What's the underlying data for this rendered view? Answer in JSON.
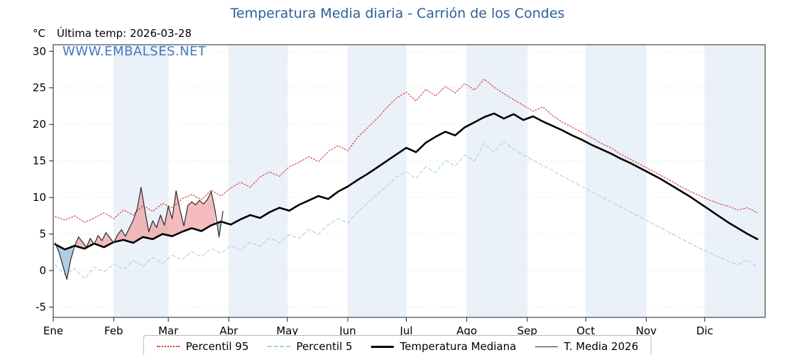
{
  "title": "Temperatura Media diaria - Carrión de los Condes",
  "unit_label": "°C",
  "last_temp_label": "Última temp: 2026-03-28",
  "watermark": "WWW.EMBALSES.NET",
  "colors": {
    "title": "#2d5f96",
    "watermark": "#3b6fc0",
    "band": "#eaf1f8",
    "grid": "#e3e7ee",
    "fill_above": "#f09f9f",
    "fill_below": "#8fb6da",
    "axis": "#222222"
  },
  "chart_data": {
    "type": "line",
    "title": "Temperatura Media diaria - Carrión de los Condes",
    "ylabel": "°C",
    "ylim": [
      -6.4,
      30.9
    ],
    "yticks": [
      -5,
      0,
      5,
      10,
      15,
      20,
      25,
      30
    ],
    "days_in_year": 365,
    "x_tick_labels": [
      "Ene",
      "Feb",
      "Mar",
      "Abr",
      "May",
      "Jun",
      "Jul",
      "Ago",
      "Sep",
      "Oct",
      "Nov",
      "Dic"
    ],
    "month_start_days": [
      0,
      31,
      59,
      90,
      120,
      151,
      181,
      212,
      243,
      273,
      304,
      334
    ],
    "grid": true,
    "legend_position": "bottom",
    "series": [
      {
        "name": "Percentil 95",
        "style": "dotted",
        "color": "#dd2a2a",
        "x_days": {
          "start": 1,
          "step": 5
        },
        "values": [
          7.4,
          6.9,
          7.5,
          6.6,
          7.2,
          7.9,
          7.1,
          8.3,
          7.6,
          8.9,
          8.1,
          9.2,
          8.6,
          9.8,
          10.4,
          9.7,
          11.0,
          10.2,
          11.3,
          12.1,
          11.4,
          12.8,
          13.5,
          12.9,
          14.2,
          14.8,
          15.6,
          14.9,
          16.3,
          17.1,
          16.4,
          18.2,
          19.5,
          20.8,
          22.3,
          23.6,
          24.4,
          23.2,
          24.8,
          23.9,
          25.2,
          24.3,
          25.6,
          24.7,
          26.2,
          25.1,
          24.2,
          23.4,
          22.6,
          21.8,
          22.4,
          21.2,
          20.3,
          19.6,
          18.9,
          18.2,
          17.4,
          16.8,
          15.9,
          15.2,
          14.5,
          13.8,
          13.1,
          12.4,
          11.6,
          10.9,
          10.3,
          9.7,
          9.2,
          8.8,
          8.3,
          8.6,
          7.9
        ]
      },
      {
        "name": "Percentil 5",
        "style": "dashed",
        "color": "#a3d3e8",
        "x_days": {
          "start": 1,
          "step": 5
        },
        "values": [
          0.8,
          -0.6,
          0.3,
          -1.1,
          0.5,
          -0.2,
          0.9,
          0.2,
          1.4,
          0.6,
          1.8,
          1.0,
          2.1,
          1.5,
          2.6,
          1.9,
          3.0,
          2.4,
          3.4,
          2.8,
          3.9,
          3.3,
          4.5,
          3.8,
          4.9,
          4.4,
          5.6,
          5.0,
          6.3,
          7.1,
          6.5,
          8.0,
          9.2,
          10.4,
          11.6,
          12.8,
          13.5,
          12.6,
          14.2,
          13.4,
          15.1,
          14.3,
          15.8,
          15.0,
          17.4,
          16.2,
          17.7,
          16.6,
          15.8,
          15.1,
          14.4,
          13.7,
          12.9,
          12.2,
          11.5,
          10.8,
          10.1,
          9.4,
          8.7,
          8.0,
          7.3,
          6.6,
          5.9,
          5.2,
          4.5,
          3.8,
          3.1,
          2.5,
          1.9,
          1.3,
          0.8,
          1.5,
          0.4
        ]
      },
      {
        "name": "Temperatura Mediana",
        "style": "solid-thick",
        "color": "#000000",
        "x_days": {
          "start": 1,
          "step": 5
        },
        "values": [
          3.6,
          2.9,
          3.4,
          3.0,
          3.7,
          3.2,
          3.9,
          4.2,
          3.8,
          4.6,
          4.3,
          5.0,
          4.7,
          5.3,
          5.8,
          5.4,
          6.2,
          6.7,
          6.3,
          7.0,
          7.6,
          7.2,
          8.0,
          8.6,
          8.2,
          9.0,
          9.6,
          10.2,
          9.8,
          10.8,
          11.5,
          12.4,
          13.2,
          14.1,
          15.0,
          15.9,
          16.8,
          16.2,
          17.5,
          18.3,
          19.0,
          18.5,
          19.6,
          20.3,
          21.0,
          21.5,
          20.8,
          21.4,
          20.6,
          21.1,
          20.4,
          19.8,
          19.2,
          18.5,
          17.9,
          17.2,
          16.6,
          16.0,
          15.3,
          14.7,
          14.0,
          13.3,
          12.6,
          11.8,
          11.0,
          10.2,
          9.3,
          8.4,
          7.5,
          6.6,
          5.8,
          5.0,
          4.3
        ]
      },
      {
        "name": "T. Media 2026",
        "style": "solid-thin",
        "color": "#2a2a2a",
        "x_days": {
          "start": 1,
          "step": 2
        },
        "values": [
          3.8,
          2.5,
          0.6,
          -1.2,
          1.5,
          3.4,
          4.6,
          3.9,
          3.2,
          4.4,
          3.6,
          4.8,
          4.1,
          5.2,
          4.5,
          3.8,
          4.9,
          5.6,
          4.7,
          5.8,
          6.9,
          8.4,
          11.4,
          8.2,
          5.3,
          6.8,
          5.9,
          7.6,
          6.2,
          8.8,
          7.1,
          10.9,
          8.3,
          6.1,
          8.9,
          9.4,
          9.0,
          9.6,
          9.1,
          9.7,
          10.8,
          8.2,
          4.6,
          8.1
        ]
      }
    ]
  }
}
